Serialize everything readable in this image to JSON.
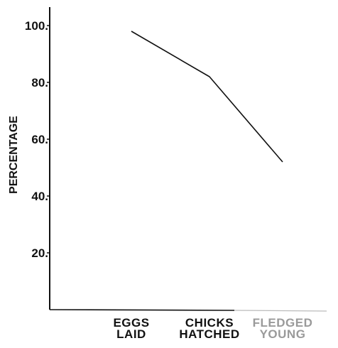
{
  "chart_data": {
    "type": "line",
    "categories": [
      [
        "EGGS",
        "LAID"
      ],
      [
        "CHICKS",
        "HATCHED"
      ],
      [
        "FLEDGED",
        "YOUNG"
      ]
    ],
    "values": [
      98,
      82,
      52
    ],
    "xlabel": "",
    "ylabel": "PERCENTAGE",
    "ylim": [
      0,
      100
    ],
    "yticks": [
      20,
      40,
      60,
      80,
      100
    ],
    "ytick_labels": [
      "20.",
      "40.",
      "60.",
      "80.",
      "100."
    ],
    "grid": false,
    "line_color": "#111111"
  }
}
